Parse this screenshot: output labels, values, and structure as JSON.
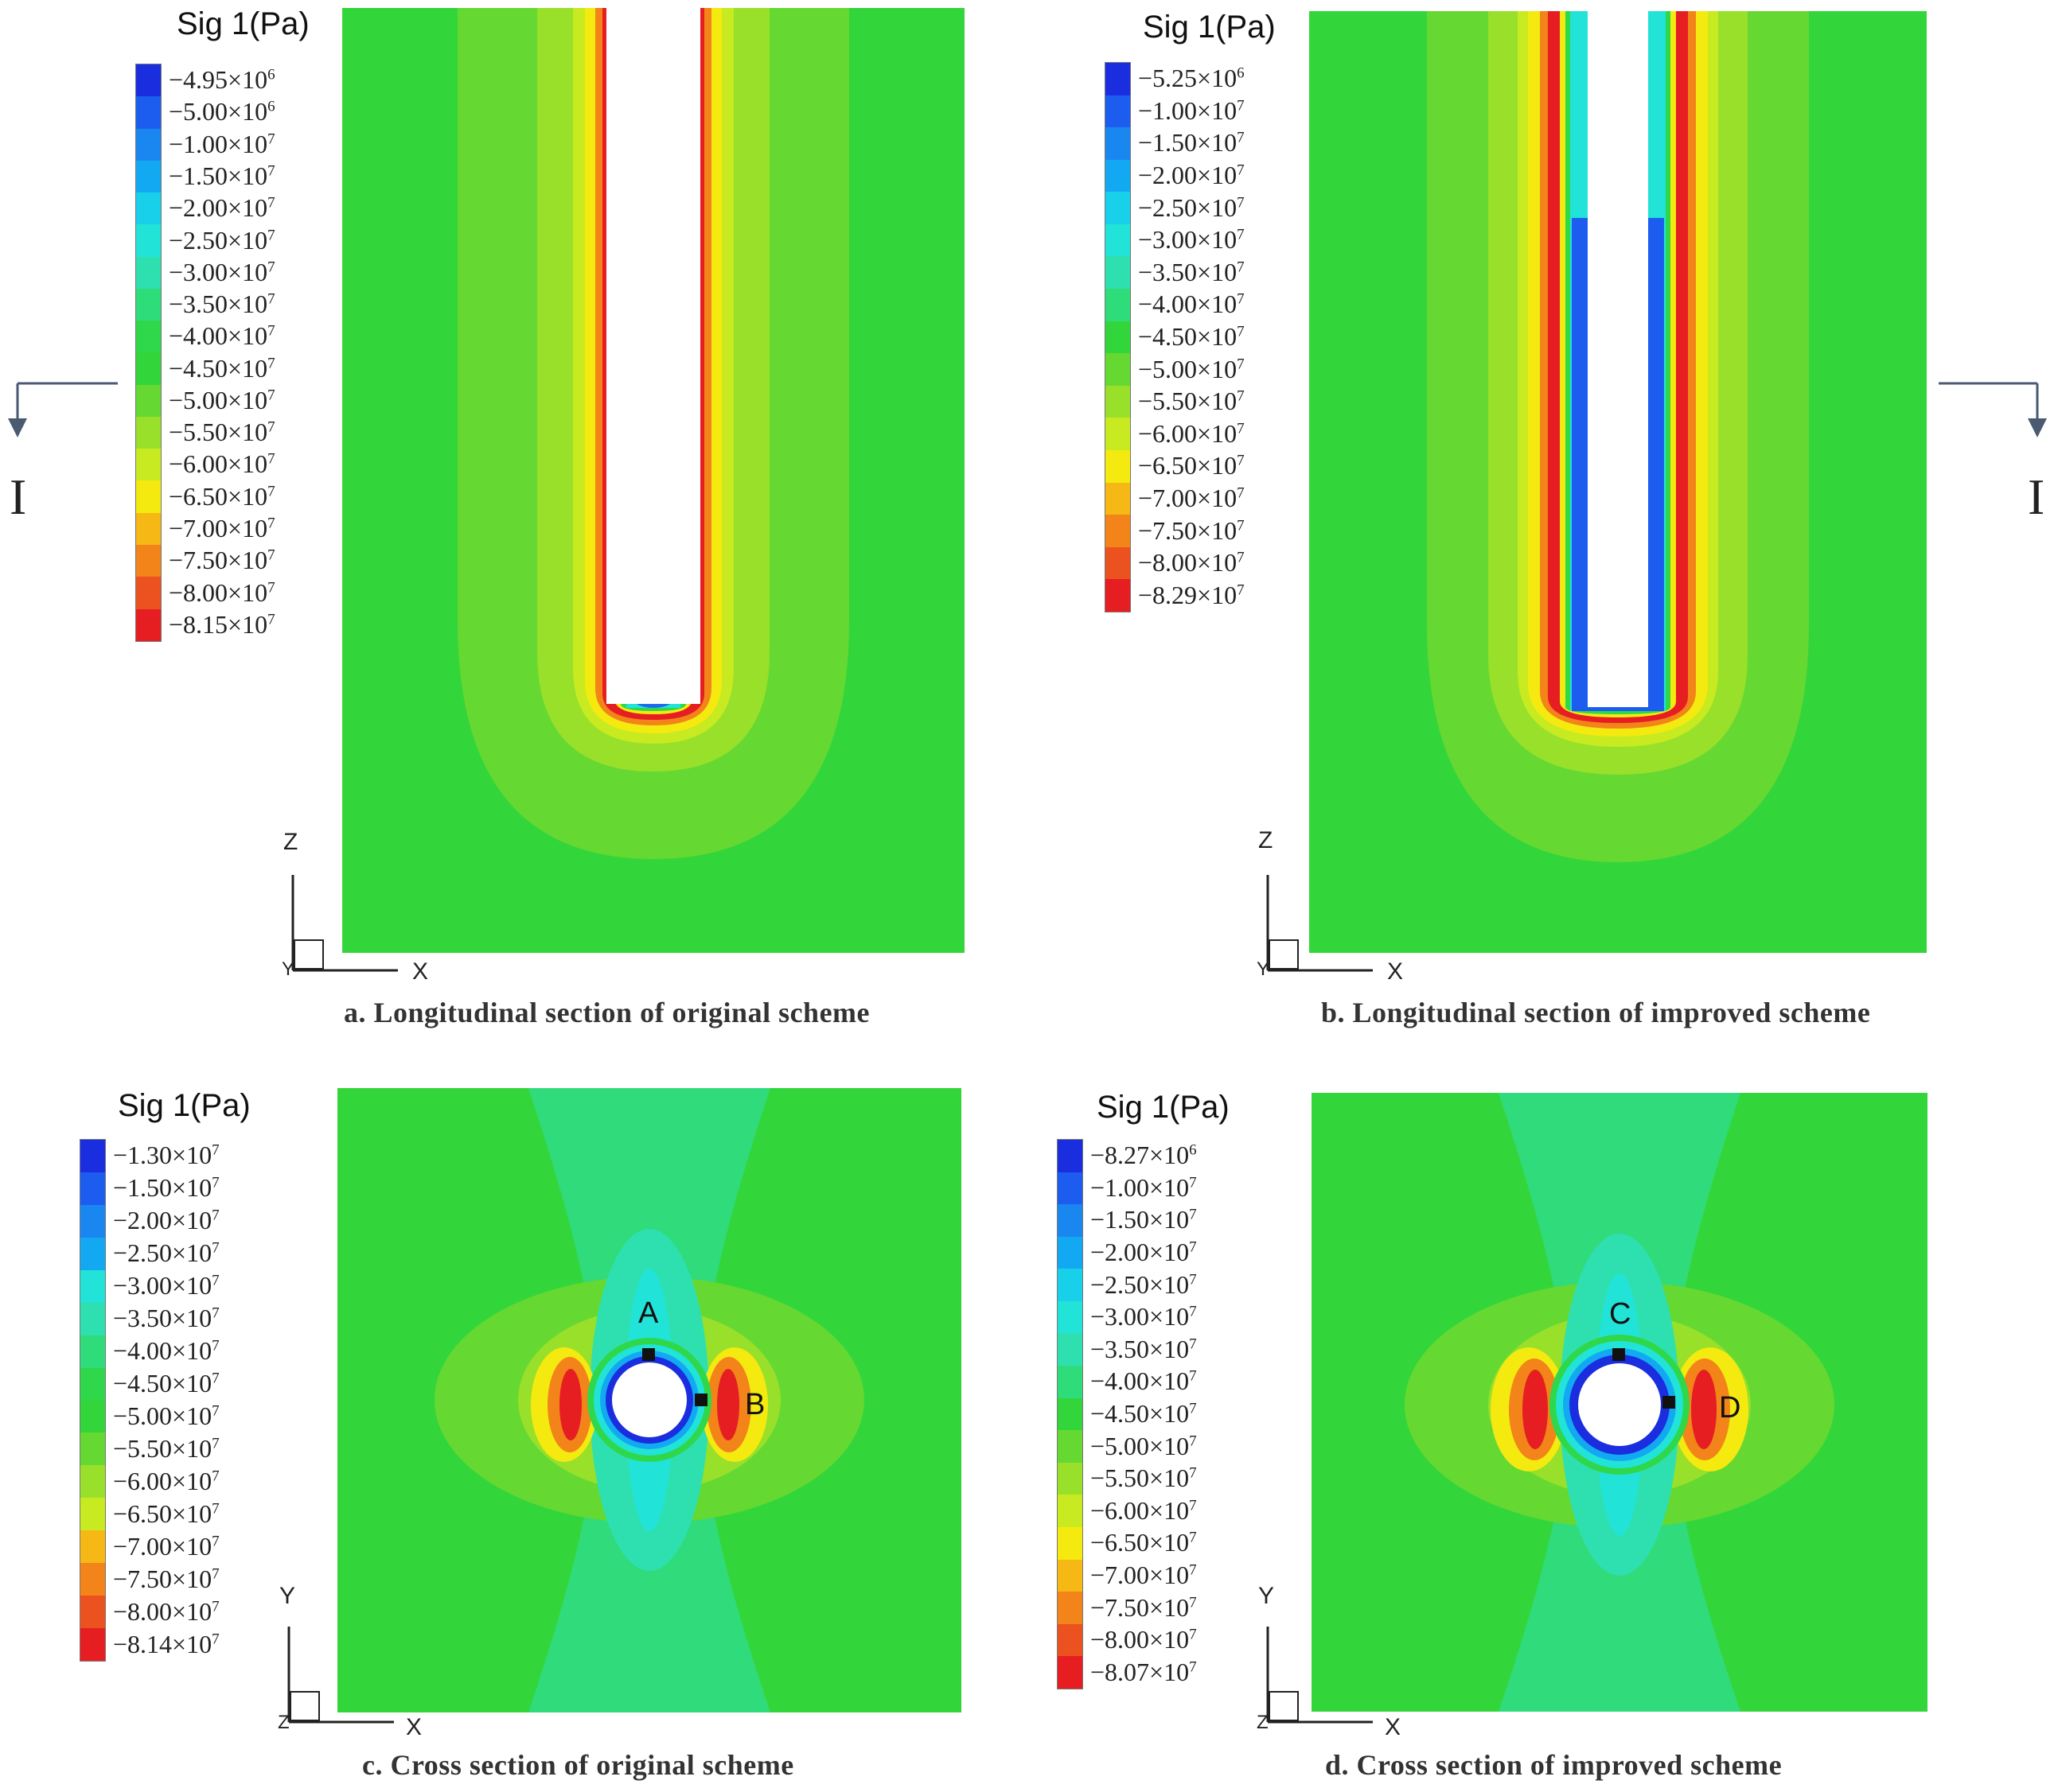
{
  "figure": {
    "section_marker": "I",
    "panels": [
      {
        "id": "a",
        "caption": "a. Longitudinal section of original scheme",
        "legend_title": "Sig 1(Pa)",
        "axes": {
          "vertical": "Z",
          "horizontal": "X",
          "corner": "Y"
        },
        "legend_values": [
          {
            "m": "−4.95",
            "e": "6"
          },
          {
            "m": "−5.00",
            "e": "6"
          },
          {
            "m": "−1.00",
            "e": "7"
          },
          {
            "m": "−1.50",
            "e": "7"
          },
          {
            "m": "−2.00",
            "e": "7"
          },
          {
            "m": "−2.50",
            "e": "7"
          },
          {
            "m": "−3.00",
            "e": "7"
          },
          {
            "m": "−3.50",
            "e": "7"
          },
          {
            "m": "−4.00",
            "e": "7"
          },
          {
            "m": "−4.50",
            "e": "7"
          },
          {
            "m": "−5.00",
            "e": "7"
          },
          {
            "m": "−5.50",
            "e": "7"
          },
          {
            "m": "−6.00",
            "e": "7"
          },
          {
            "m": "−6.50",
            "e": "7"
          },
          {
            "m": "−7.00",
            "e": "7"
          },
          {
            "m": "−7.50",
            "e": "7"
          },
          {
            "m": "−8.00",
            "e": "7"
          },
          {
            "m": "−8.15",
            "e": "7"
          }
        ]
      },
      {
        "id": "b",
        "caption": "b. Longitudinal section of improved scheme",
        "legend_title": "Sig 1(Pa)",
        "axes": {
          "vertical": "Z",
          "horizontal": "X",
          "corner": "Y"
        },
        "legend_values": [
          {
            "m": "−5.25",
            "e": "6"
          },
          {
            "m": "−1.00",
            "e": "7"
          },
          {
            "m": "−1.50",
            "e": "7"
          },
          {
            "m": "−2.00",
            "e": "7"
          },
          {
            "m": "−2.50",
            "e": "7"
          },
          {
            "m": "−3.00",
            "e": "7"
          },
          {
            "m": "−3.50",
            "e": "7"
          },
          {
            "m": "−4.00",
            "e": "7"
          },
          {
            "m": "−4.50",
            "e": "7"
          },
          {
            "m": "−5.00",
            "e": "7"
          },
          {
            "m": "−5.50",
            "e": "7"
          },
          {
            "m": "−6.00",
            "e": "7"
          },
          {
            "m": "−6.50",
            "e": "7"
          },
          {
            "m": "−7.00",
            "e": "7"
          },
          {
            "m": "−7.50",
            "e": "7"
          },
          {
            "m": "−8.00",
            "e": "7"
          },
          {
            "m": "−8.29",
            "e": "7"
          }
        ]
      },
      {
        "id": "c",
        "caption": "c. Cross section of original scheme",
        "legend_title": "Sig 1(Pa)",
        "axes": {
          "vertical": "Y",
          "horizontal": "X",
          "corner": "Z"
        },
        "points": [
          "A",
          "B"
        ],
        "legend_values": [
          {
            "m": "−1.30",
            "e": "7"
          },
          {
            "m": "−1.50",
            "e": "7"
          },
          {
            "m": "−2.00",
            "e": "7"
          },
          {
            "m": "−2.50",
            "e": "7"
          },
          {
            "m": "−3.00",
            "e": "7"
          },
          {
            "m": "−3.50",
            "e": "7"
          },
          {
            "m": "−4.00",
            "e": "7"
          },
          {
            "m": "−4.50",
            "e": "7"
          },
          {
            "m": "−5.00",
            "e": "7"
          },
          {
            "m": "−5.50",
            "e": "7"
          },
          {
            "m": "−6.00",
            "e": "7"
          },
          {
            "m": "−6.50",
            "e": "7"
          },
          {
            "m": "−7.00",
            "e": "7"
          },
          {
            "m": "−7.50",
            "e": "7"
          },
          {
            "m": "−8.00",
            "e": "7"
          },
          {
            "m": "−8.14",
            "e": "7"
          }
        ]
      },
      {
        "id": "d",
        "caption": "d. Cross section of improved scheme",
        "legend_title": "Sig 1(Pa)",
        "axes": {
          "vertical": "Y",
          "horizontal": "X",
          "corner": "Z"
        },
        "points": [
          "C",
          "D"
        ],
        "legend_values": [
          {
            "m": "−8.27",
            "e": "6"
          },
          {
            "m": "−1.00",
            "e": "7"
          },
          {
            "m": "−1.50",
            "e": "7"
          },
          {
            "m": "−2.00",
            "e": "7"
          },
          {
            "m": "−2.50",
            "e": "7"
          },
          {
            "m": "−3.00",
            "e": "7"
          },
          {
            "m": "−3.50",
            "e": "7"
          },
          {
            "m": "−4.00",
            "e": "7"
          },
          {
            "m": "−4.50",
            "e": "7"
          },
          {
            "m": "−5.00",
            "e": "7"
          },
          {
            "m": "−5.50",
            "e": "7"
          },
          {
            "m": "−6.00",
            "e": "7"
          },
          {
            "m": "−6.50",
            "e": "7"
          },
          {
            "m": "−7.00",
            "e": "7"
          },
          {
            "m": "−7.50",
            "e": "7"
          },
          {
            "m": "−8.00",
            "e": "7"
          },
          {
            "m": "−8.07",
            "e": "7"
          }
        ]
      }
    ],
    "colormap": [
      "#1a2ee0",
      "#1c5df0",
      "#1a86f0",
      "#13a9f2",
      "#18d0ea",
      "#22e3d8",
      "#2ee0b0",
      "#2fdc7a",
      "#2ed84a",
      "#33d63a",
      "#66d832",
      "#98e02a",
      "#c8ea20",
      "#f4ea10",
      "#f6b814",
      "#f2841a",
      "#ec5220",
      "#e61e22"
    ]
  }
}
